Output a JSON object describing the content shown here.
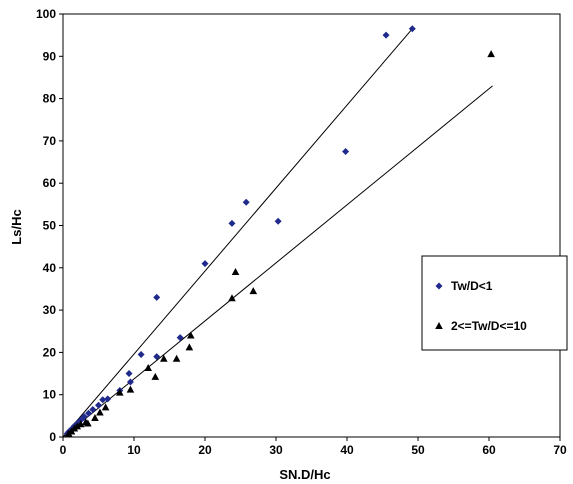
{
  "chart_data": {
    "type": "scatter",
    "xlabel": "SN.D/Hc",
    "ylabel": "Ls/Hc",
    "xlim": [
      0,
      70
    ],
    "ylim": [
      0,
      100
    ],
    "xticks": [
      0,
      10,
      20,
      30,
      40,
      50,
      60,
      70
    ],
    "yticks": [
      0,
      10,
      20,
      30,
      40,
      50,
      60,
      70,
      80,
      90,
      100
    ],
    "grid": false,
    "legend_position": "right",
    "series": [
      {
        "name": "Tw/D<1",
        "marker": "diamond",
        "color": "#1f2a8c",
        "points": [
          [
            0.6,
            0.8
          ],
          [
            0.8,
            1.2
          ],
          [
            1.0,
            1.5
          ],
          [
            1.3,
            2.0
          ],
          [
            1.6,
            2.6
          ],
          [
            2.0,
            3.2
          ],
          [
            2.5,
            4.0
          ],
          [
            3.0,
            4.8
          ],
          [
            3.6,
            5.6
          ],
          [
            4.2,
            6.5
          ],
          [
            5.0,
            7.5
          ],
          [
            5.6,
            8.8
          ],
          [
            6.3,
            9.0
          ],
          [
            8.0,
            11.0
          ],
          [
            9.5,
            13.0
          ],
          [
            9.3,
            15.0
          ],
          [
            11.0,
            19.5
          ],
          [
            13.2,
            19.0
          ],
          [
            13.2,
            33.0
          ],
          [
            16.5,
            23.5
          ],
          [
            20.0,
            41.0
          ],
          [
            23.8,
            50.5
          ],
          [
            25.8,
            55.5
          ],
          [
            30.3,
            51.0
          ],
          [
            39.8,
            67.5
          ],
          [
            45.5,
            95.0
          ],
          [
            49.2,
            96.5
          ]
        ],
        "trendline": [
          [
            0,
            0
          ],
          [
            49.2,
            96.5
          ]
        ]
      },
      {
        "name": "2<=Tw/D<=10",
        "marker": "triangle",
        "color": "#000000",
        "points": [
          [
            0.8,
            0.8
          ],
          [
            1.2,
            1.3
          ],
          [
            1.6,
            2.0
          ],
          [
            2.0,
            2.5
          ],
          [
            2.5,
            3.0
          ],
          [
            3.2,
            3.5
          ],
          [
            3.5,
            3.2
          ],
          [
            4.5,
            4.5
          ],
          [
            5.2,
            5.8
          ],
          [
            6.0,
            7.0
          ],
          [
            8.0,
            10.5
          ],
          [
            9.5,
            11.2
          ],
          [
            12.0,
            16.3
          ],
          [
            13.0,
            14.2
          ],
          [
            14.2,
            18.5
          ],
          [
            16.0,
            18.5
          ],
          [
            17.8,
            21.2
          ],
          [
            18.0,
            24.0
          ],
          [
            23.8,
            32.8
          ],
          [
            24.3,
            39.0
          ],
          [
            26.8,
            34.5
          ],
          [
            60.3,
            90.5
          ]
        ],
        "trendline": [
          [
            0,
            0
          ],
          [
            60.5,
            83.0
          ]
        ]
      }
    ]
  }
}
